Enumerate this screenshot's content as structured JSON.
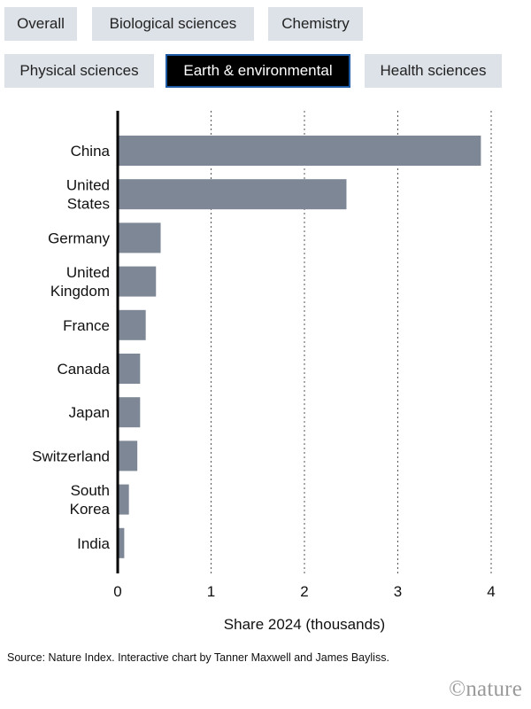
{
  "tabs": [
    {
      "label": "Overall",
      "active": false
    },
    {
      "label": "Biological sciences",
      "active": false
    },
    {
      "label": "Chemistry",
      "active": false
    },
    {
      "label": "Physical sciences",
      "active": false
    },
    {
      "label": "Earth & environmental",
      "active": true
    },
    {
      "label": "Health sciences",
      "active": false
    }
  ],
  "colors": {
    "bar": "#7d8795",
    "tab_bg": "#dde2e8",
    "tab_active_bg": "#000000",
    "tab_active_border": "#1f5aa6"
  },
  "chart_data": {
    "type": "bar",
    "orientation": "horizontal",
    "categories": [
      "China",
      "United States",
      "Germany",
      "United Kingdom",
      "France",
      "Canada",
      "Japan",
      "Switzerland",
      "South Korea",
      "India"
    ],
    "category_lines": [
      [
        "China"
      ],
      [
        "United",
        "States"
      ],
      [
        "Germany"
      ],
      [
        "United",
        "Kingdom"
      ],
      [
        "France"
      ],
      [
        "Canada"
      ],
      [
        "Japan"
      ],
      [
        "Switzerland"
      ],
      [
        "South",
        "Korea"
      ],
      [
        "India"
      ]
    ],
    "values": [
      3.89,
      2.45,
      0.46,
      0.41,
      0.3,
      0.24,
      0.24,
      0.21,
      0.12,
      0.07
    ],
    "xlabel": "Share 2024 (thousands)",
    "xlim": [
      0,
      4
    ],
    "xticks": [
      "0",
      "1",
      "2",
      "3",
      "4"
    ],
    "grid": "vertical-dotted"
  },
  "source": "Source: Nature Index. Interactive chart by Tanner Maxwell and James Bayliss.",
  "brand": "©nature"
}
